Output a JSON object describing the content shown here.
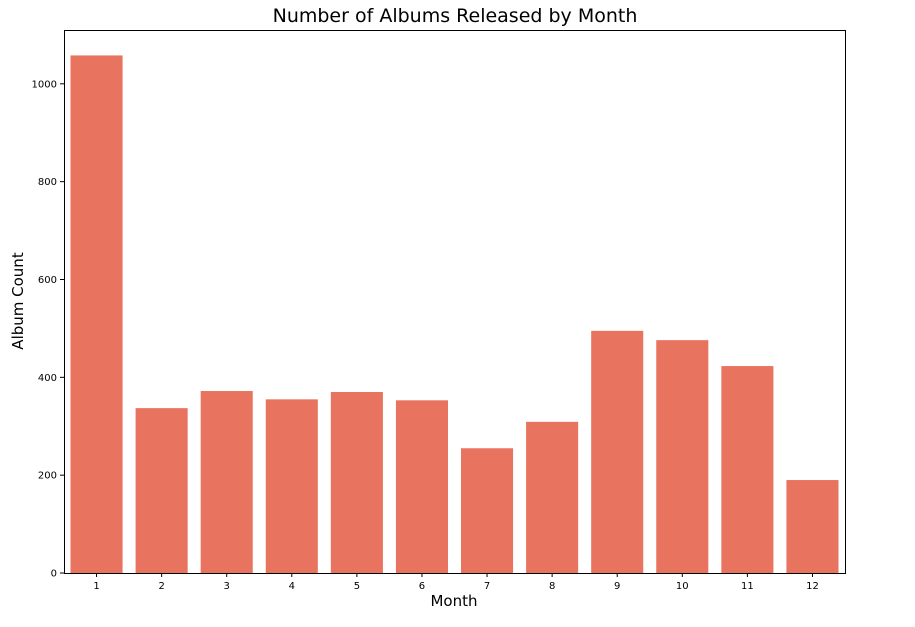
{
  "chart_data": {
    "type": "bar",
    "title": "Number of Albums Released by Month",
    "xlabel": "Month",
    "ylabel": "Album Count",
    "categories": [
      "1",
      "2",
      "3",
      "4",
      "5",
      "6",
      "7",
      "8",
      "9",
      "10",
      "11",
      "12"
    ],
    "values": [
      1058,
      337,
      372,
      355,
      370,
      353,
      255,
      309,
      495,
      476,
      423,
      190
    ],
    "ylim": [
      0,
      1110
    ],
    "yticks": [
      0,
      200,
      400,
      600,
      800,
      1000
    ],
    "grid": false,
    "bar_color": "#e8735e"
  }
}
